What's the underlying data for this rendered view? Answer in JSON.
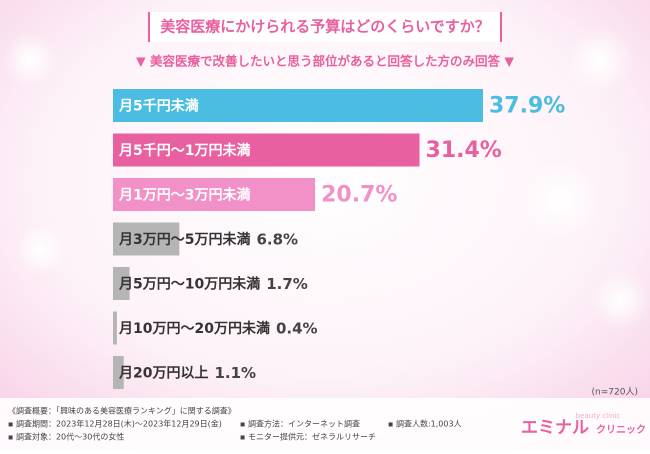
{
  "chart_data": {
    "type": "bar",
    "title": "美容医療にかけられる予算はどのくらいですか？",
    "subtitle": "▼ 美容医療で改善したいと思う部位があると回答した方のみ回答 ▼",
    "categories": [
      "月5千円未満",
      "月5千円〜1万円未満",
      "月1万円〜3万円未満",
      "月3万円〜5万円未満",
      "月5万円〜10万円未満",
      "月10万円〜20万円未満",
      "月20万円以上"
    ],
    "values": [
      37.9,
      31.4,
      20.7,
      6.8,
      1.7,
      0.4,
      1.1
    ],
    "value_labels": [
      "37.9%",
      "31.4%",
      "20.7%",
      "6.8%",
      "1.7%",
      "0.4%",
      "1.1%"
    ],
    "colors": [
      "#4bbde2",
      "#e8609f",
      "#f291c8",
      "#b5b5b5",
      "#b5b5b5",
      "#b5b5b5",
      "#b5b5b5"
    ],
    "sample_note": "(n=720人)",
    "footer": {
      "heading": "《調査概要：「興味のある美容医療ランキング」に関する調査》",
      "items": [
        "▪ 調査期間：2023年12月28日(木)〜2023年12月29日(金)",
        "▪ 調査対象：20代〜30代の女性",
        "▪ 調査方法：インターネット調査",
        "▪ モニター提供元：ゼネラルリサーチ",
        "▪ 調査人数:1,003人"
      ]
    },
    "logo": {
      "main": "エミナル",
      "sub": "クリニック",
      "tag": "beauty clinic"
    }
  }
}
